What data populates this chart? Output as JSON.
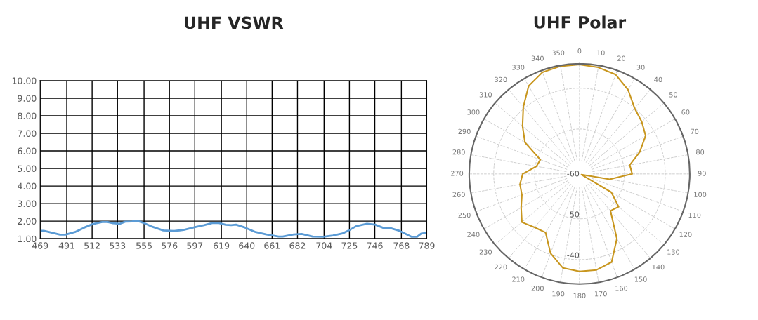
{
  "chart_data": [
    {
      "type": "line",
      "title": "UHF VSWR",
      "x": [
        469,
        472,
        477.5,
        485.4,
        490,
        497.8,
        505.7,
        512.4,
        520.3,
        524.8,
        529.3,
        534.9,
        539.4,
        545,
        548.8,
        555.1,
        561.9,
        570.9,
        579.9,
        587.8,
        597.9,
        604.7,
        611.4,
        617,
        622.6,
        627.1,
        631.1,
        638.4,
        647.3,
        656.3,
        666.4,
        669.8,
        678.8,
        685.5,
        694.5,
        703.5,
        711.4,
        719.3,
        726,
        730.5,
        739.5,
        746.2,
        752.9,
        758.6,
        766.4,
        776.5,
        781,
        784.4,
        789
      ],
      "series": [
        {
          "color": "#5b9bd5",
          "values": [
            1.45,
            1.45,
            1.36,
            1.23,
            1.23,
            1.38,
            1.64,
            1.83,
            1.95,
            1.95,
            1.88,
            1.85,
            1.97,
            1.98,
            2.03,
            1.89,
            1.68,
            1.47,
            1.44,
            1.5,
            1.67,
            1.77,
            1.89,
            1.89,
            1.79,
            1.77,
            1.8,
            1.64,
            1.38,
            1.24,
            1.12,
            1.12,
            1.24,
            1.27,
            1.12,
            1.11,
            1.18,
            1.3,
            1.53,
            1.71,
            1.85,
            1.8,
            1.62,
            1.61,
            1.45,
            1.11,
            1.11,
            1.29,
            1.33
          ]
        }
      ],
      "xlim": [
        469,
        789
      ],
      "xticks": [
        469,
        491,
        512,
        533,
        555,
        576,
        597,
        619,
        640,
        661,
        682,
        704,
        725,
        746,
        768,
        789
      ],
      "ylim": [
        1,
        10
      ],
      "yticks": [
        {
          "value": 1,
          "label": "1.00"
        },
        {
          "value": 2,
          "label": "2.00"
        },
        {
          "value": 3,
          "label": "3.00"
        },
        {
          "value": 4,
          "label": "4.00"
        },
        {
          "value": 5,
          "label": "5.00"
        },
        {
          "value": 6,
          "label": "6.00"
        },
        {
          "value": 7,
          "label": "7.00"
        },
        {
          "value": 8,
          "label": "8.00"
        },
        {
          "value": 9,
          "label": "9.00"
        },
        {
          "value": 10,
          "label": "10.00"
        }
      ],
      "grid": true,
      "marker": "none",
      "line_style": "solid"
    },
    {
      "type": "radar",
      "title": "UHF Polar",
      "categories": [
        "0",
        "10",
        "20",
        "30",
        "40",
        "50",
        "60",
        "70",
        "80",
        "90",
        "100",
        "110",
        "120",
        "130",
        "140",
        "150",
        "160",
        "170",
        "180",
        "190",
        "200",
        "210",
        "220",
        "230",
        "240",
        "250",
        "260",
        "270",
        "280",
        "290",
        "300",
        "310",
        "320",
        "330",
        "340",
        "350"
      ],
      "series": [
        {
          "color": "#c8961e",
          "values": [
            -34.2,
            -34.5,
            -35.1,
            -37.2,
            -40.0,
            -41.1,
            -42.3,
            -45.3,
            -48.5,
            -48.1,
            -53.5,
            -60.5,
            -52,
            -48.5,
            -49.2,
            -42.7,
            -38,
            -37.1,
            -37.1,
            -37.6,
            -40.3,
            -44.4,
            -43.9,
            -42.6,
            -44.5,
            -46,
            -46.2,
            -47.1,
            -50.3,
            -50.8,
            -45.6,
            -42.8,
            -39.6,
            -36.1,
            -34.5,
            -34.2
          ]
        }
      ],
      "ylim": [
        -61,
        -34
      ],
      "yticks": [
        {
          "value": -60,
          "label": "-60"
        },
        {
          "value": -50,
          "label": "-50"
        },
        {
          "value": -40,
          "label": "-40"
        }
      ],
      "grid": true,
      "marker": "none",
      "line_style": "solid"
    }
  ]
}
